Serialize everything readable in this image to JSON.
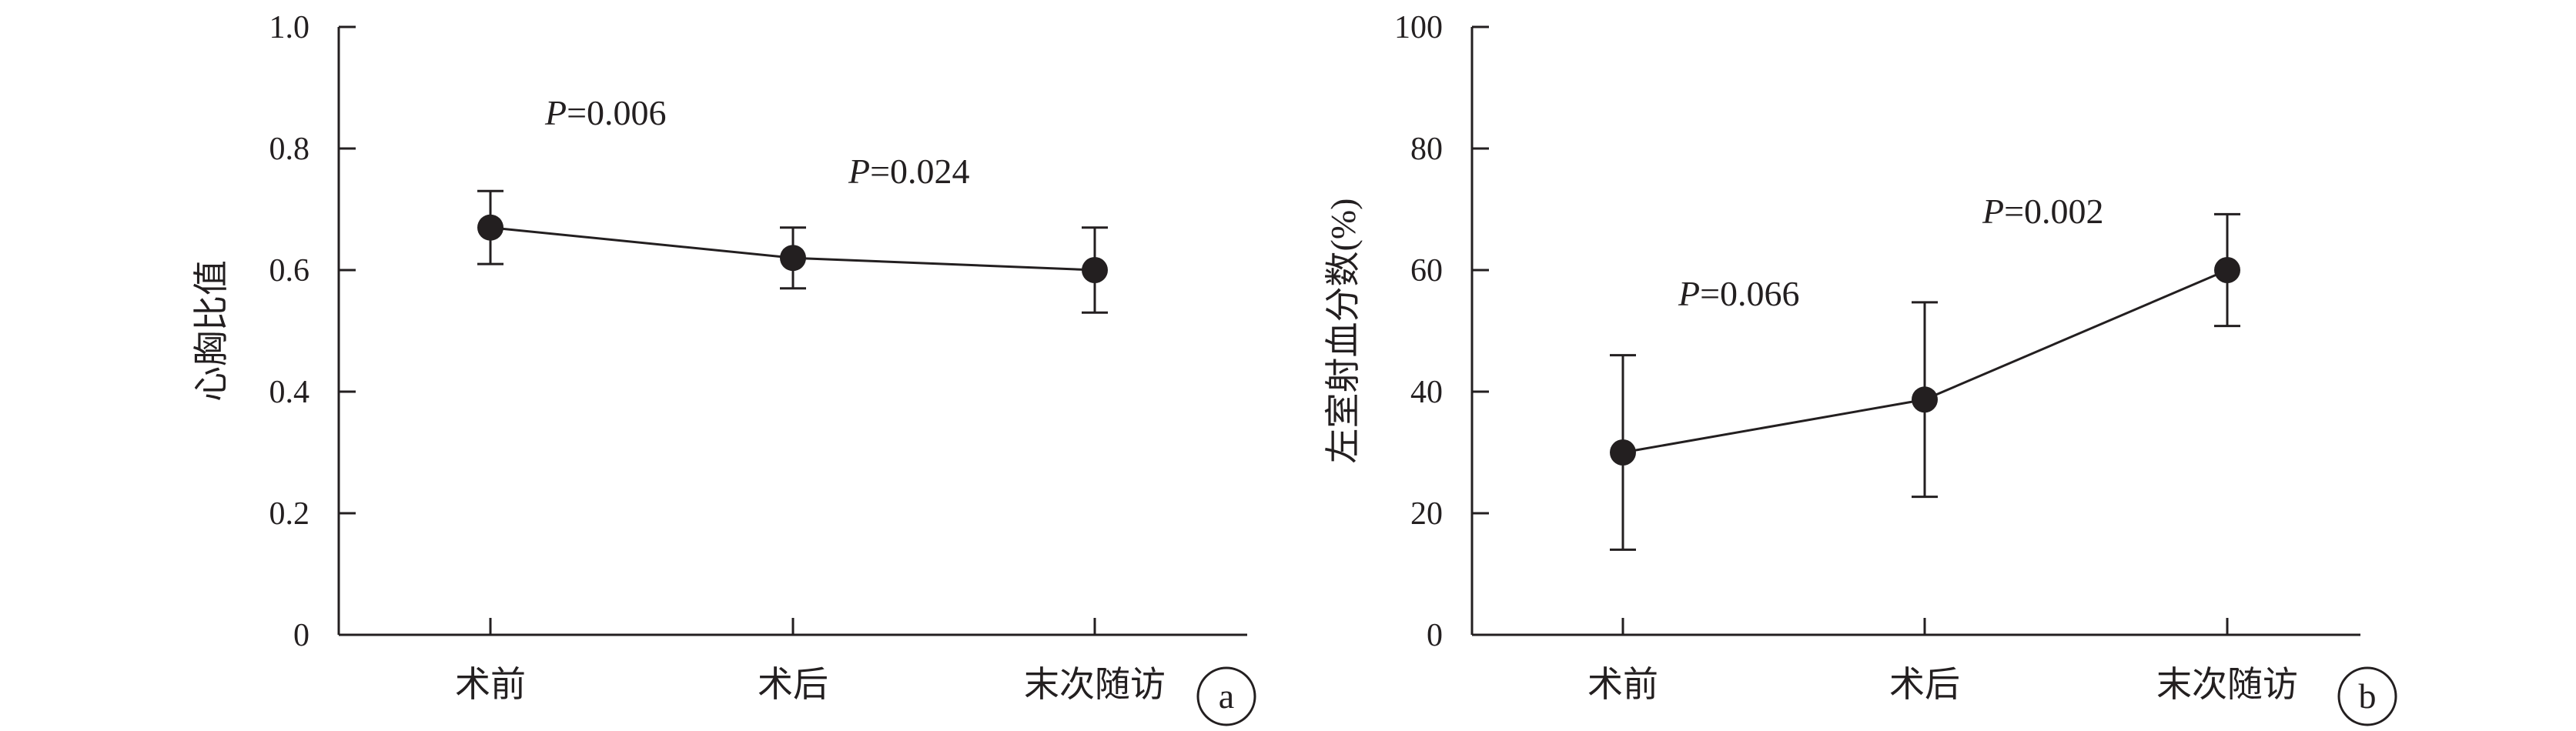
{
  "chart_data": [
    {
      "panel_label": "a",
      "type": "line",
      "ylabel": "心胸比值",
      "xlabel": "",
      "categories": [
        "术前",
        "术后",
        "末次随访"
      ],
      "series": [
        {
          "values": [
            0.67,
            0.62,
            0.6
          ],
          "error": [
            0.06,
            0.05,
            0.07
          ]
        }
      ],
      "ylim": [
        0,
        1.0
      ],
      "yticks": [
        "0",
        "0.2",
        "0.4",
        "0.6",
        "0.8",
        "1.0"
      ],
      "ytick_values": [
        0,
        0.2,
        0.4,
        0.6,
        0.8,
        1.0
      ],
      "annotations": [
        {
          "italic": "P",
          "text": "=0.006"
        },
        {
          "italic": "P",
          "text": "=0.024"
        }
      ],
      "grid": false,
      "color": "#231f20"
    },
    {
      "panel_label": "b",
      "type": "line",
      "ylabel": "左室射血分数(%)",
      "xlabel": "",
      "categories": [
        "术前",
        "术后",
        "末次随访"
      ],
      "series": [
        {
          "values": [
            30,
            38.7,
            60
          ],
          "error": [
            16,
            16,
            9.2
          ]
        }
      ],
      "ylim": [
        0,
        100
      ],
      "yticks": [
        "0",
        "20",
        "40",
        "60",
        "80",
        "100"
      ],
      "ytick_values": [
        0,
        20,
        40,
        60,
        80,
        100
      ],
      "annotations": [
        {
          "italic": "P",
          "text": "=0.066"
        },
        {
          "italic": "P",
          "text": "=0.002"
        }
      ],
      "grid": false,
      "color": "#231f20"
    }
  ]
}
